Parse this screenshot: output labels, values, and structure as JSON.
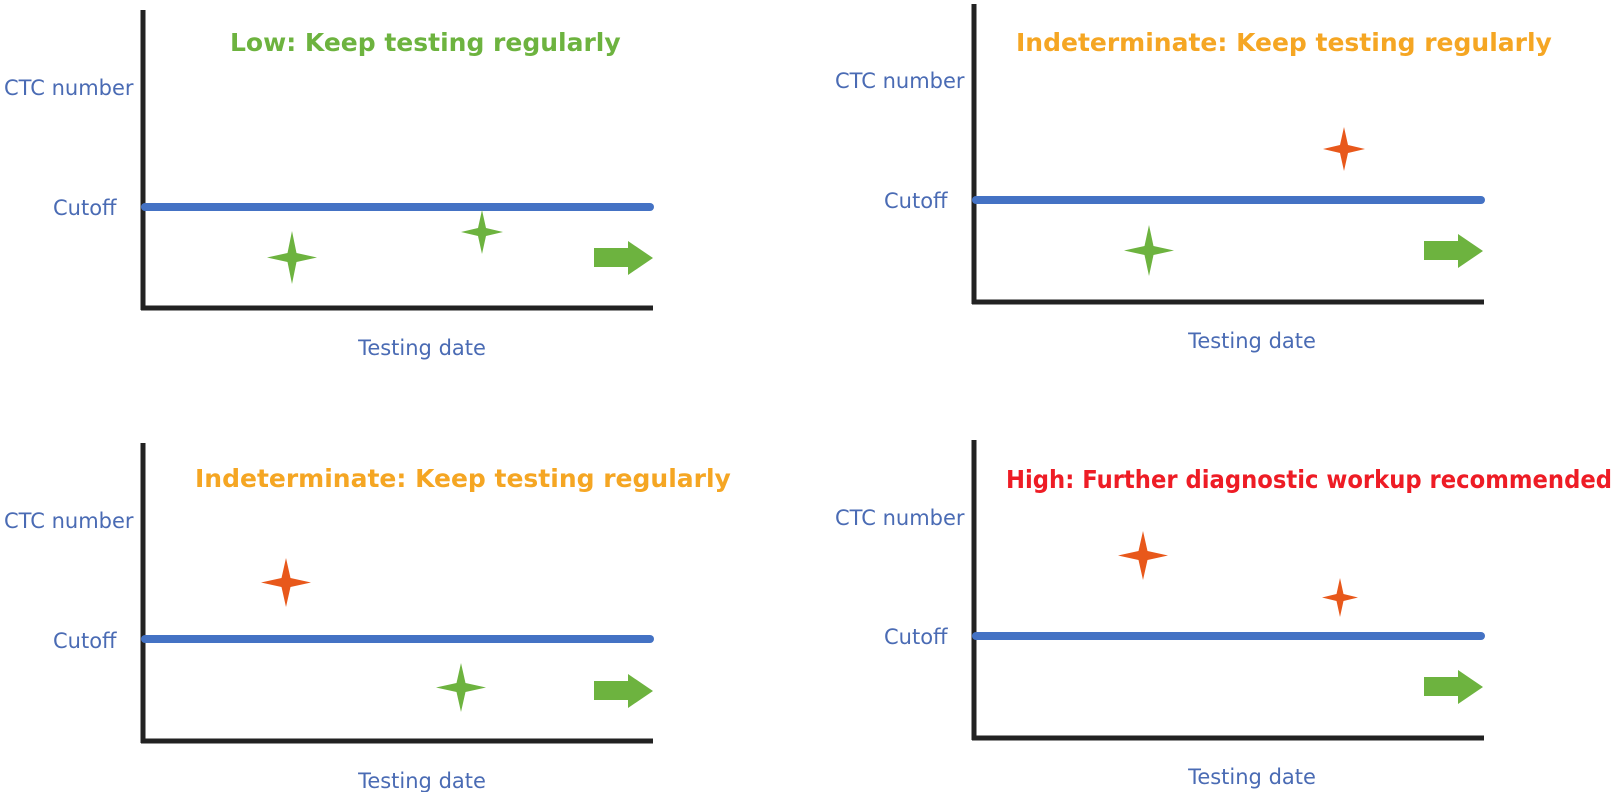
{
  "colors": {
    "axis": "#222222",
    "cutoff_line": "#4472C4",
    "label_text": "#4A6BB4",
    "marker_below": "#6DB33F",
    "marker_above": "#E8581B",
    "arrow": "#6DB33F"
  },
  "panels": [
    {
      "id": "low",
      "title": "Low: Keep testing regularly",
      "title_color": "#6DB33F",
      "y_label": "CTC number",
      "cutoff_label": "Cutoff",
      "x_label": "Testing date",
      "markers": [
        {
          "level": "below",
          "icon": "four-point-star-icon"
        },
        {
          "level": "below",
          "icon": "four-point-star-icon"
        }
      ],
      "arrow_icon": "right-arrow-icon"
    },
    {
      "id": "indeterminate-1",
      "title": "Indeterminate: Keep testing regularly",
      "title_color": "#F5A623",
      "y_label": "CTC number",
      "cutoff_label": "Cutoff",
      "x_label": "Testing date",
      "markers": [
        {
          "level": "below",
          "icon": "four-point-star-icon"
        },
        {
          "level": "above",
          "icon": "four-point-star-icon"
        }
      ],
      "arrow_icon": "right-arrow-icon"
    },
    {
      "id": "indeterminate-2",
      "title": "Indeterminate: Keep testing regularly",
      "title_color": "#F5A623",
      "y_label": "CTC number",
      "cutoff_label": "Cutoff",
      "x_label": "Testing date",
      "markers": [
        {
          "level": "above",
          "icon": "four-point-star-icon"
        },
        {
          "level": "below",
          "icon": "four-point-star-icon"
        }
      ],
      "arrow_icon": "right-arrow-icon"
    },
    {
      "id": "high",
      "title": "High: Further diagnostic workup recommended",
      "title_color": "#EE1C25",
      "y_label": "CTC number",
      "cutoff_label": "Cutoff",
      "x_label": "Testing date",
      "markers": [
        {
          "level": "above",
          "icon": "four-point-star-icon"
        },
        {
          "level": "above",
          "icon": "four-point-star-icon"
        }
      ],
      "arrow_icon": "right-arrow-icon"
    }
  ]
}
